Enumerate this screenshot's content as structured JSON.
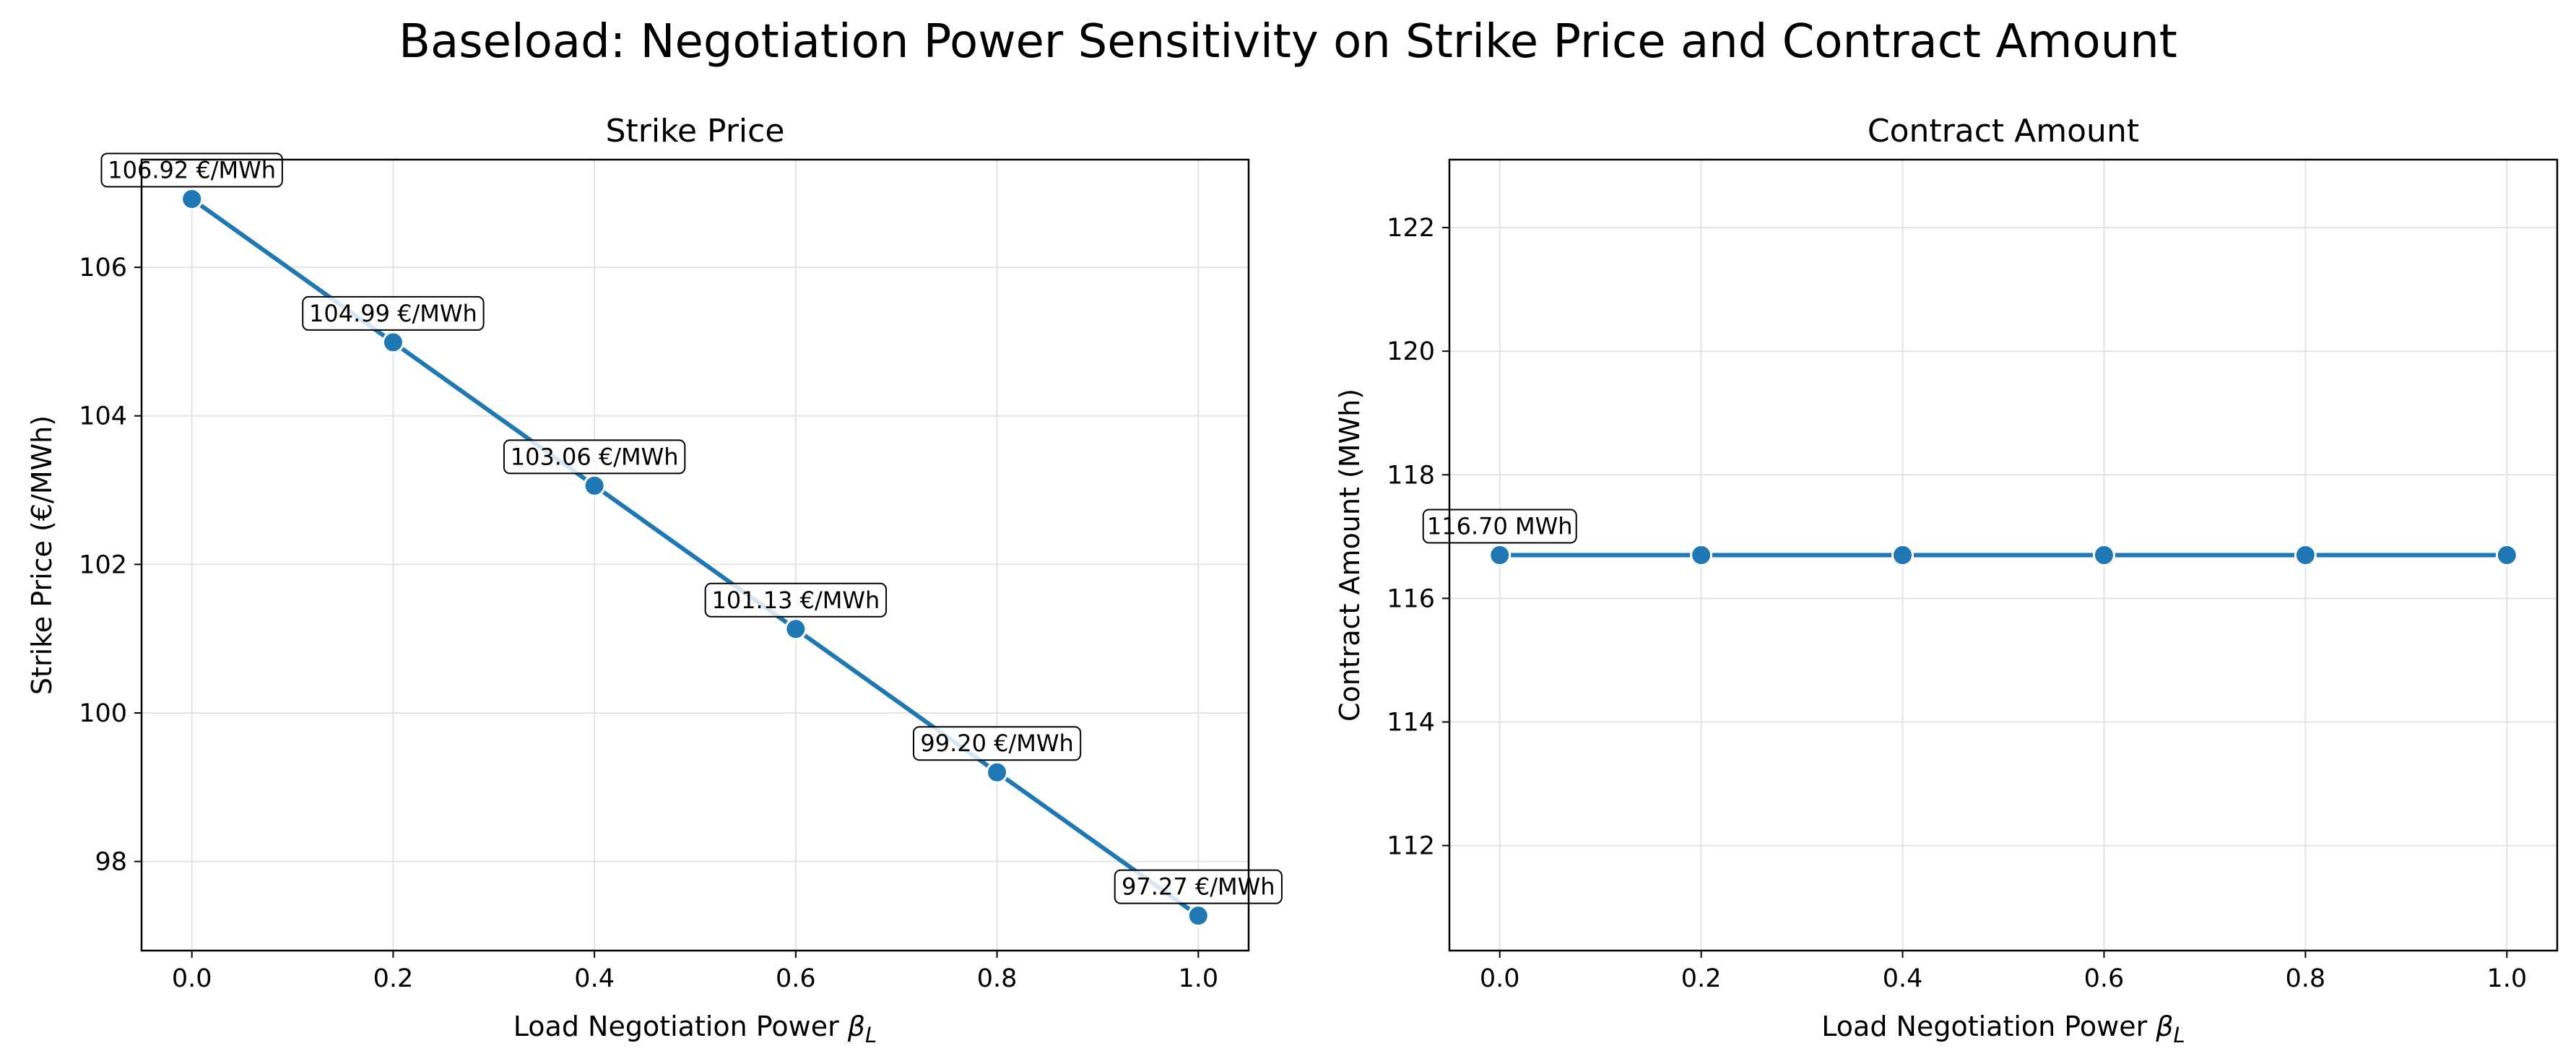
{
  "figure": {
    "title": "Baseload: Negotiation Power Sensitivity on Strike Price and Contract Amount"
  },
  "chart_data": [
    {
      "type": "line",
      "title": "Strike Price",
      "xlabel": "Load Negotiation Power β_L",
      "ylabel": "Strike Price (€/MWh)",
      "x": [
        0.0,
        0.2,
        0.4,
        0.6,
        0.8,
        1.0
      ],
      "xlim": [
        -0.05,
        1.05
      ],
      "ylim": [
        96.8,
        107.45
      ],
      "xticks": [
        0.0,
        0.2,
        0.4,
        0.6,
        0.8,
        1.0
      ],
      "xtick_labels": [
        "0.0",
        "0.2",
        "0.4",
        "0.6",
        "0.8",
        "1.0"
      ],
      "yticks": [
        98,
        100,
        102,
        104,
        106
      ],
      "ytick_labels": [
        "98",
        "100",
        "102",
        "104",
        "106"
      ],
      "grid": true,
      "legend": "none",
      "series": [
        {
          "values": [
            106.92,
            104.99,
            103.06,
            101.13,
            99.2,
            97.27
          ],
          "color": "#1f77b4",
          "point_labels": [
            "106.92 €/MWh",
            "104.99 €/MWh",
            "103.06 €/MWh",
            "101.13 €/MWh",
            "99.20 €/MWh",
            "97.27 €/MWh"
          ]
        }
      ]
    },
    {
      "type": "line",
      "title": "Contract Amount",
      "xlabel": "Load Negotiation Power β_L",
      "ylabel": "Contract Amount (MWh)",
      "x": [
        0.0,
        0.2,
        0.4,
        0.6,
        0.8,
        1.0
      ],
      "xlim": [
        -0.05,
        1.05
      ],
      "ylim": [
        110.3,
        123.1
      ],
      "xticks": [
        0.0,
        0.2,
        0.4,
        0.6,
        0.8,
        1.0
      ],
      "xtick_labels": [
        "0.0",
        "0.2",
        "0.4",
        "0.6",
        "0.8",
        "1.0"
      ],
      "yticks": [
        112,
        114,
        116,
        118,
        120,
        122
      ],
      "ytick_labels": [
        "112",
        "114",
        "116",
        "118",
        "120",
        "122"
      ],
      "grid": true,
      "legend": "none",
      "series": [
        {
          "values": [
            116.7,
            116.7,
            116.7,
            116.7,
            116.7,
            116.7
          ],
          "color": "#1f77b4",
          "point_labels": [
            "116.70 MWh",
            "",
            "",
            "",
            "",
            ""
          ]
        }
      ]
    }
  ]
}
